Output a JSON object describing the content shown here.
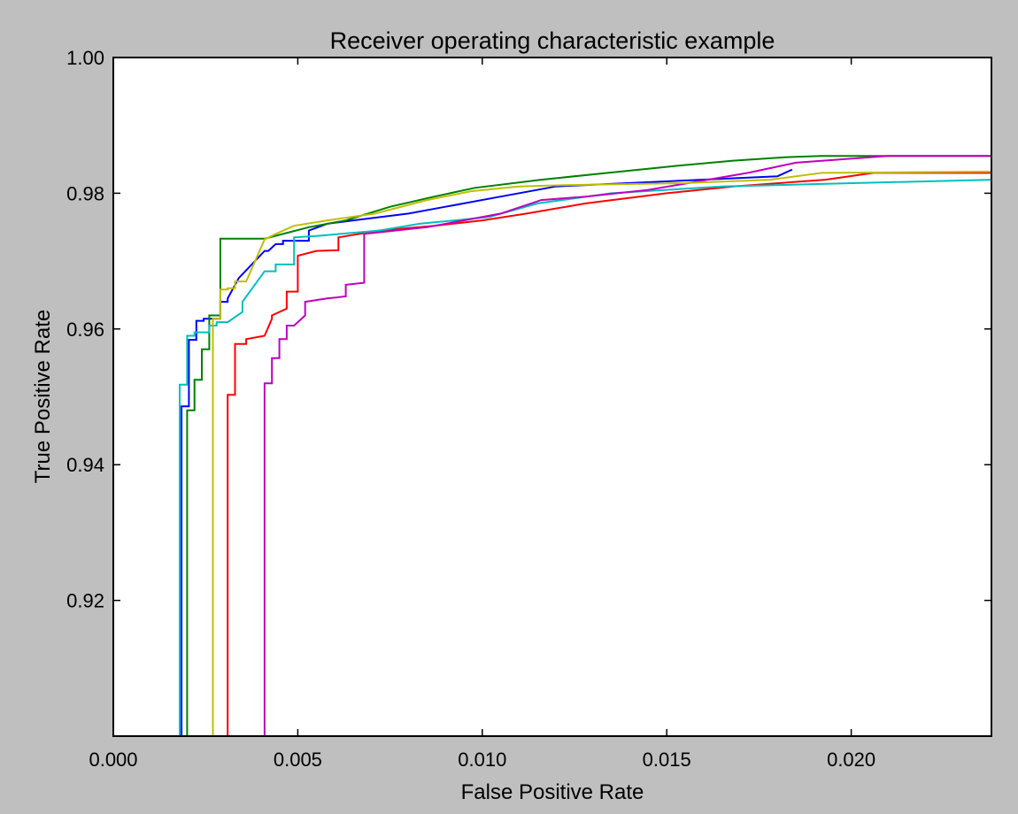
{
  "chart_data": {
    "type": "line",
    "title": "Receiver operating characteristic example",
    "xlabel": "False Positive Rate",
    "ylabel": "True Positive Rate",
    "xlim": [
      0.0,
      0.0238
    ],
    "ylim": [
      0.9,
      1.0
    ],
    "x_ticks": [
      0.0,
      0.005,
      0.01,
      0.015,
      0.02
    ],
    "x_tick_labels": [
      "0.000",
      "0.005",
      "0.010",
      "0.015",
      "0.020"
    ],
    "y_ticks": [
      0.92,
      0.94,
      0.96,
      0.98,
      1.0
    ],
    "y_tick_labels": [
      "0.92",
      "0.94",
      "0.96",
      "0.98",
      "1.00"
    ],
    "grid": false,
    "legend": "none",
    "series": [
      {
        "color": "#0000ff",
        "x": [
          0.00185,
          0.00185,
          0.00205,
          0.00205,
          0.00225,
          0.00225,
          0.00245,
          0.00245,
          0.0029,
          0.0029,
          0.0031,
          0.0031,
          0.0034,
          0.0041,
          0.0042,
          0.0044,
          0.0046,
          0.0046,
          0.0053,
          0.0053,
          0.0058,
          0.0065,
          0.008,
          0.009,
          0.0105,
          0.012,
          0.018,
          0.0184
        ],
        "y": [
          0.9,
          0.9486,
          0.9486,
          0.9584,
          0.9584,
          0.9612,
          0.9612,
          0.9615,
          0.9615,
          0.964,
          0.964,
          0.9645,
          0.9675,
          0.9715,
          0.9715,
          0.9725,
          0.9725,
          0.973,
          0.973,
          0.9745,
          0.9755,
          0.976,
          0.977,
          0.978,
          0.9795,
          0.981,
          0.9825,
          0.9835
        ]
      },
      {
        "color": "#008000",
        "x": [
          0.002,
          0.002,
          0.0022,
          0.0022,
          0.0024,
          0.0024,
          0.0026,
          0.0026,
          0.0029,
          0.0029,
          0.0041,
          0.0046,
          0.0053,
          0.0063,
          0.0075,
          0.0087,
          0.0098,
          0.0116,
          0.0134,
          0.0152,
          0.0168,
          0.0182,
          0.0192,
          0.021,
          0.0238
        ],
        "y": [
          0.9,
          0.948,
          0.948,
          0.9525,
          0.9525,
          0.957,
          0.957,
          0.962,
          0.962,
          0.9733,
          0.9733,
          0.974,
          0.975,
          0.976,
          0.978,
          0.9795,
          0.9808,
          0.982,
          0.983,
          0.984,
          0.9848,
          0.9853,
          0.9855,
          0.9855,
          0.9855
        ]
      },
      {
        "color": "#ff0000",
        "x": [
          0.0031,
          0.0031,
          0.0033,
          0.0033,
          0.0036,
          0.0036,
          0.0041,
          0.0043,
          0.0043,
          0.0047,
          0.0047,
          0.005,
          0.005,
          0.0055,
          0.0061,
          0.0061,
          0.0072,
          0.0087,
          0.01,
          0.0112,
          0.0128,
          0.015,
          0.0168,
          0.0193,
          0.0206,
          0.0238
        ],
        "y": [
          0.9,
          0.9503,
          0.9503,
          0.9578,
          0.9578,
          0.9585,
          0.959,
          0.9615,
          0.962,
          0.963,
          0.9655,
          0.9655,
          0.9708,
          0.9715,
          0.9716,
          0.9735,
          0.9745,
          0.9752,
          0.976,
          0.977,
          0.9785,
          0.98,
          0.981,
          0.982,
          0.983,
          0.983
        ]
      },
      {
        "color": "#00bfbf",
        "x": [
          0.0018,
          0.0018,
          0.002,
          0.002,
          0.0022,
          0.0022,
          0.0026,
          0.0026,
          0.0028,
          0.0028,
          0.0031,
          0.0035,
          0.0035,
          0.0041,
          0.0044,
          0.0044,
          0.0049,
          0.0049,
          0.0055,
          0.0072,
          0.0083,
          0.0102,
          0.0115,
          0.0135,
          0.0165,
          0.0238
        ],
        "y": [
          0.9,
          0.9518,
          0.9518,
          0.959,
          0.959,
          0.9595,
          0.9595,
          0.9605,
          0.9605,
          0.961,
          0.961,
          0.9625,
          0.964,
          0.9685,
          0.9685,
          0.9695,
          0.9695,
          0.9735,
          0.9737,
          0.9745,
          0.9755,
          0.9765,
          0.9785,
          0.98,
          0.981,
          0.982
        ]
      },
      {
        "color": "#bf00bf",
        "x": [
          0.0041,
          0.0041,
          0.0043,
          0.0043,
          0.0045,
          0.0045,
          0.0047,
          0.0047,
          0.0049,
          0.0052,
          0.0052,
          0.0058,
          0.0063,
          0.0063,
          0.0068,
          0.0068,
          0.0085,
          0.0105,
          0.0116,
          0.0128,
          0.0145,
          0.0172,
          0.0185,
          0.021,
          0.0238
        ],
        "y": [
          0.9,
          0.952,
          0.952,
          0.9557,
          0.9557,
          0.9585,
          0.9585,
          0.9605,
          0.9605,
          0.962,
          0.964,
          0.9645,
          0.9648,
          0.9665,
          0.9668,
          0.974,
          0.975,
          0.977,
          0.979,
          0.9795,
          0.9805,
          0.983,
          0.9845,
          0.9855,
          0.9855
        ]
      },
      {
        "color": "#bfbf00",
        "x": [
          0.0027,
          0.0027,
          0.0029,
          0.0029,
          0.0031,
          0.0031,
          0.0033,
          0.0033,
          0.0036,
          0.0041,
          0.0044,
          0.0049,
          0.0058,
          0.0071,
          0.0085,
          0.0097,
          0.011,
          0.0122,
          0.0155,
          0.0178,
          0.0192,
          0.0238
        ],
        "y": [
          0.9,
          0.9615,
          0.9615,
          0.9658,
          0.9658,
          0.966,
          0.966,
          0.967,
          0.967,
          0.9732,
          0.974,
          0.9752,
          0.976,
          0.977,
          0.979,
          0.9803,
          0.981,
          0.9812,
          0.9815,
          0.982,
          0.983,
          0.9832
        ]
      }
    ]
  }
}
